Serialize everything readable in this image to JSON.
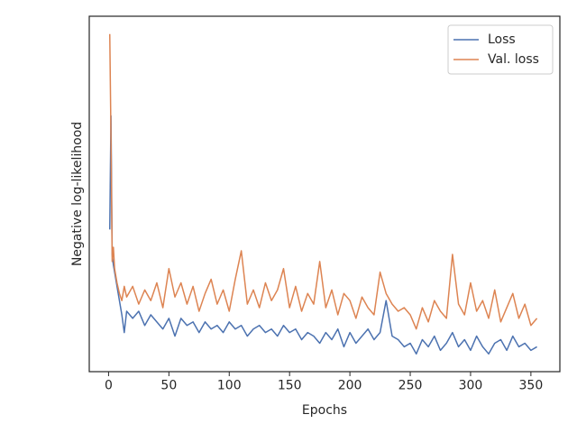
{
  "chart_data": {
    "type": "line",
    "x_label": "Epochs",
    "y_label": "Negative log-likelihood",
    "xlim": [
      -16,
      374
    ],
    "xticks": [
      0,
      50,
      100,
      150,
      200,
      250,
      300,
      350
    ],
    "ylim": [
      0,
      100
    ],
    "legend": "upper right",
    "x": [
      1,
      2,
      3,
      4,
      5,
      7,
      9,
      11,
      13,
      15,
      20,
      25,
      30,
      35,
      40,
      45,
      50,
      55,
      60,
      65,
      70,
      75,
      80,
      85,
      90,
      95,
      100,
      105,
      110,
      115,
      120,
      125,
      130,
      135,
      140,
      145,
      150,
      155,
      160,
      165,
      170,
      175,
      180,
      185,
      190,
      195,
      200,
      205,
      210,
      215,
      220,
      225,
      230,
      235,
      240,
      245,
      250,
      255,
      260,
      265,
      270,
      275,
      280,
      285,
      290,
      295,
      300,
      305,
      310,
      315,
      320,
      325,
      330,
      335,
      340,
      345,
      350,
      355
    ],
    "series": [
      {
        "name": "Loss",
        "color": "#4c72b0",
        "values": [
          40,
          72,
          33,
          30,
          28,
          24,
          20,
          16,
          11,
          17,
          15,
          17,
          13,
          16,
          14,
          12,
          15,
          10,
          15,
          13,
          14,
          11,
          14,
          12,
          13,
          11,
          14,
          12,
          13,
          10,
          12,
          13,
          11,
          12,
          10,
          13,
          11,
          12,
          9,
          11,
          10,
          8,
          11,
          9,
          12,
          7,
          11,
          8,
          10,
          12,
          9,
          11,
          20,
          10,
          9,
          7,
          8,
          5,
          9,
          7,
          10,
          6,
          8,
          11,
          7,
          9,
          6,
          10,
          7,
          5,
          8,
          9,
          6,
          10,
          7,
          8,
          6,
          7
        ]
      },
      {
        "name": "Val. loss",
        "color": "#dd8452",
        "values": [
          95,
          66,
          31,
          35,
          29,
          25,
          22,
          20,
          24,
          21,
          24,
          19,
          23,
          20,
          25,
          18,
          29,
          21,
          25,
          19,
          24,
          17,
          22,
          26,
          19,
          23,
          17,
          26,
          34,
          19,
          23,
          18,
          25,
          20,
          23,
          29,
          18,
          24,
          17,
          22,
          19,
          31,
          18,
          23,
          16,
          22,
          20,
          15,
          21,
          18,
          16,
          28,
          22,
          19,
          17,
          18,
          16,
          12,
          18,
          14,
          20,
          17,
          15,
          33,
          19,
          16,
          25,
          17,
          20,
          15,
          23,
          14,
          18,
          22,
          15,
          19,
          13,
          15
        ]
      }
    ]
  }
}
